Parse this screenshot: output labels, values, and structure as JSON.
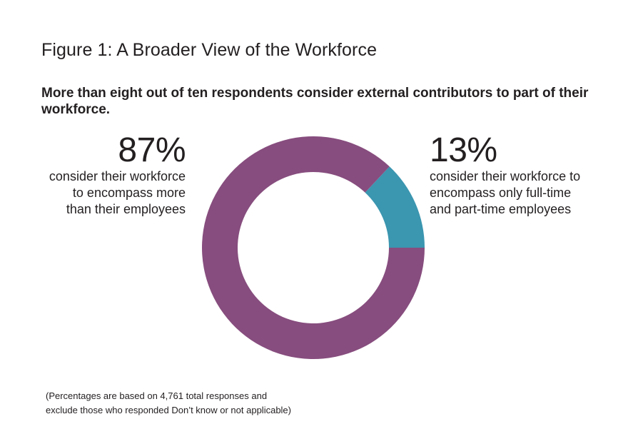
{
  "figure": {
    "title": "Figure 1: A Broader View of the Workforce",
    "subtitle": "More than eight out of ten respondents consider external contributors to part of their workforce."
  },
  "callouts": {
    "left": {
      "pct": "87%",
      "lines": [
        "consider their workforce",
        "to encompass more",
        "than their employees"
      ]
    },
    "right": {
      "pct": "13%",
      "lines": [
        "consider their workforce to",
        "encompass only full-time",
        "and part-time employees"
      ]
    }
  },
  "footnote": {
    "lines": [
      "(Percentages are based on 4,761 total responses and",
      "exclude those who responded Don’t know or not applicable)"
    ]
  },
  "chart_data": {
    "type": "pie",
    "variant": "donut",
    "slices": [
      {
        "label": "consider their workforce to encompass more than their employees",
        "value": 87,
        "color": "#874d7e"
      },
      {
        "label": "consider their workforce to encompass only full-time and part-time employees",
        "value": 13,
        "color": "#3b96b0"
      }
    ],
    "start": "3 o'clock",
    "direction": "counter-clockwise",
    "title": "Figure 1: A Broader View of the Workforce",
    "subtitle": "More than eight out of ten respondents consider external contributors to part of their workforce."
  }
}
